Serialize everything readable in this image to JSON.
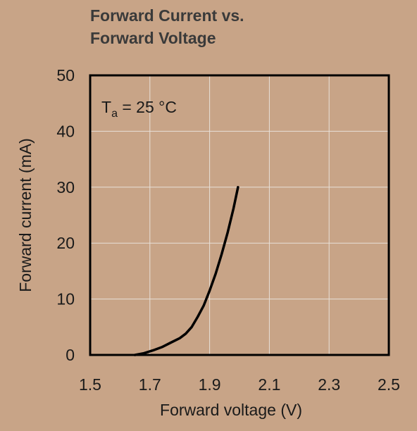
{
  "chart_data": {
    "type": "line",
    "title_lines": [
      "Forward Current vs.",
      "Forward Voltage"
    ],
    "xlabel": "Forward voltage (V)",
    "ylabel": "Forward current (mA)",
    "xlim": [
      1.5,
      2.5
    ],
    "ylim": [
      0,
      50
    ],
    "xticks": [
      "1.5",
      "1.7",
      "1.9",
      "2.1",
      "2.3",
      "2.5"
    ],
    "yticks": [
      "0",
      "10",
      "20",
      "30",
      "40",
      "50"
    ],
    "grid": true,
    "annotation": {
      "symbol": "T",
      "subscript": "a",
      "text": " = 25 °C"
    },
    "series": [
      {
        "x": [
          1.65,
          1.68,
          1.71,
          1.74,
          1.77,
          1.8,
          1.82,
          1.84,
          1.86,
          1.88,
          1.9,
          1.92,
          1.94,
          1.96,
          1.98,
          1.995
        ],
        "y": [
          0.0,
          0.3,
          0.8,
          1.4,
          2.2,
          3.0,
          3.8,
          5.0,
          6.8,
          8.8,
          11.5,
          14.5,
          18.0,
          21.8,
          26.2,
          30.0
        ]
      }
    ]
  }
}
